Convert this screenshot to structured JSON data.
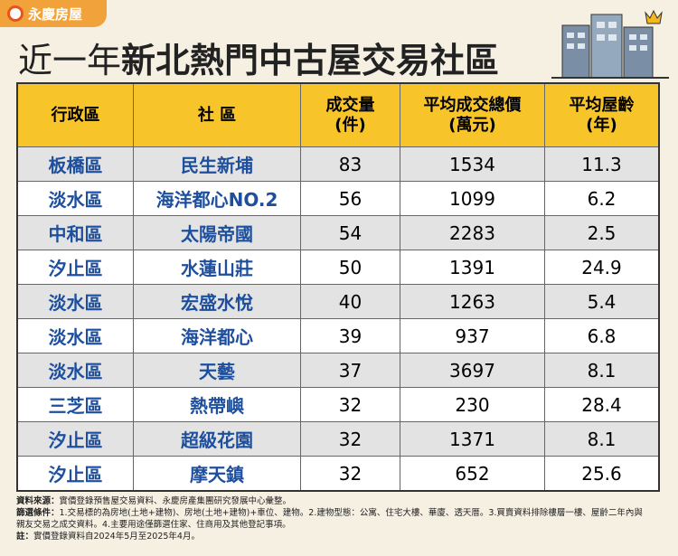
{
  "logo": {
    "text": "永慶房屋"
  },
  "title": {
    "light": "近一年",
    "bold": "新北熱門中古屋交易社區"
  },
  "table": {
    "header": [
      "行政區",
      "社 區",
      "成交量\n(件)",
      "平均成交總價\n(萬元)",
      "平均屋齡\n(年)"
    ],
    "rows": [
      [
        "板橋區",
        "民生新埔",
        83,
        1534,
        11.3
      ],
      [
        "淡水區",
        "海洋都心NO.2",
        56,
        1099,
        6.2
      ],
      [
        "中和區",
        "太陽帝國",
        54,
        2283,
        2.5
      ],
      [
        "汐止區",
        "水蓮山莊",
        50,
        1391,
        24.9
      ],
      [
        "淡水區",
        "宏盛水悅",
        40,
        1263,
        5.4
      ],
      [
        "淡水區",
        "海洋都心",
        39,
        937,
        6.8
      ],
      [
        "淡水區",
        "天藝",
        37,
        3697,
        8.1
      ],
      [
        "三芝區",
        "熱帶嶼",
        32,
        230,
        28.4
      ],
      [
        "汐止區",
        "超級花園",
        32,
        1371,
        8.1
      ],
      [
        "汐止區",
        "摩天鎮",
        32,
        652,
        25.6
      ]
    ]
  },
  "notes": [
    {
      "label": "資料來源：",
      "text": "實價登錄預售屋交易資料、永慶房產集團研究發展中心彙整。"
    },
    {
      "label": "篩選條件：",
      "text": "1.交易標的為房地(土地+建物)、房地(土地+建物)+車位、建物。2.建物型態：公寓、住宅大樓、華廈、透天厝。3.買賣資料排除樓層一樓、屋齡二年內與親友交易之成交資料。4.主要用途僅篩選住家、住商用及其他登記事項。"
    },
    {
      "label": "註：",
      "text": "實價登錄資料自2024年5月至2025年4月。"
    }
  ]
}
